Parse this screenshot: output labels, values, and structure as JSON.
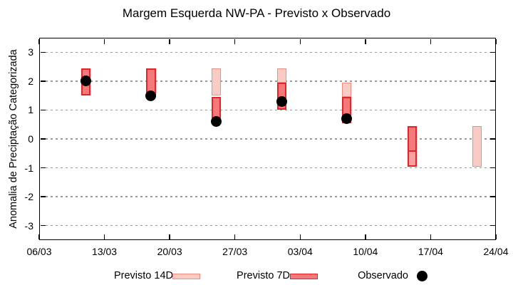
{
  "title": "Margem Esquerda NW-PA - Previsto x Observado",
  "chart_data": {
    "type": "bar",
    "subtype": "floating-range-bars-with-points",
    "title": "Margem Esquerda NW-PA - Previsto x Observado",
    "xlabel": "",
    "ylabel": "Anomalia de Preciptação Categorizada",
    "ylim": [
      -3.5,
      3.5
    ],
    "yticks": [
      3,
      2,
      1,
      0,
      -1,
      -2,
      -3
    ],
    "xlim_days": [
      0,
      49
    ],
    "xticks": [
      {
        "day": 0,
        "label": "06/03"
      },
      {
        "day": 7,
        "label": "13/03"
      },
      {
        "day": 14,
        "label": "20/03"
      },
      {
        "day": 21,
        "label": "27/03"
      },
      {
        "day": 28,
        "label": "03/04"
      },
      {
        "day": 35,
        "label": "10/04"
      },
      {
        "day": 42,
        "label": "17/04"
      },
      {
        "day": 49,
        "label": "24/04"
      }
    ],
    "grid": "horizontal-dotted",
    "legend_position": "bottom",
    "bar_width_days": 1,
    "groups": [
      {
        "day": 5,
        "date": "11/03",
        "segments": [
          {
            "lo": 1.5,
            "hi": 2.45,
            "style": "p7"
          }
        ],
        "obs": 2.0
      },
      {
        "day": 12,
        "date": "18/03",
        "segments": [
          {
            "lo": 1.45,
            "hi": 2.45,
            "style": "p7"
          }
        ],
        "obs": 1.5
      },
      {
        "day": 19,
        "date": "25/03",
        "segments": [
          {
            "lo": 1.5,
            "hi": 2.45,
            "style": "p14"
          },
          {
            "lo": 0.55,
            "hi": 1.45,
            "style": "p7"
          }
        ],
        "obs": 0.6
      },
      {
        "day": 26,
        "date": "01/04",
        "segments": [
          {
            "lo": 1.95,
            "hi": 2.45,
            "style": "p14"
          },
          {
            "lo": 1.0,
            "hi": 1.95,
            "style": "p7"
          }
        ],
        "obs": 1.3
      },
      {
        "day": 33,
        "date": "08/04",
        "segments": [
          {
            "lo": 1.45,
            "hi": 1.95,
            "style": "p14"
          },
          {
            "lo": 0.55,
            "hi": 1.45,
            "style": "p7"
          }
        ],
        "obs": 0.7
      },
      {
        "day": 40,
        "date": "15/04",
        "segments": [
          {
            "lo": -0.45,
            "hi": 0.45,
            "style": "p7"
          },
          {
            "lo": -0.95,
            "hi": -0.45,
            "style": "p7_light"
          }
        ],
        "obs": null
      },
      {
        "day": 47,
        "date": "22/04",
        "segments": [
          {
            "lo": -0.95,
            "hi": 0.45,
            "style": "p14"
          }
        ],
        "obs": null
      }
    ],
    "legend": [
      {
        "label": "Previsto 14D",
        "swatch": "p14"
      },
      {
        "label": "Previsto 7D",
        "swatch": "p7"
      },
      {
        "label": "Observado",
        "swatch": "obs"
      }
    ]
  },
  "colors": {
    "previsto_14d_fill": "#f8cbc4",
    "previsto_14d_border": "#ef8d82",
    "previsto_7d_fill": "#f4797b",
    "previsto_7d_border": "#e62427",
    "previsto_7d_light_fill": "#fb9fa0",
    "observado": "#000000",
    "grid": "#9a9a9a",
    "axis": "#000000"
  }
}
